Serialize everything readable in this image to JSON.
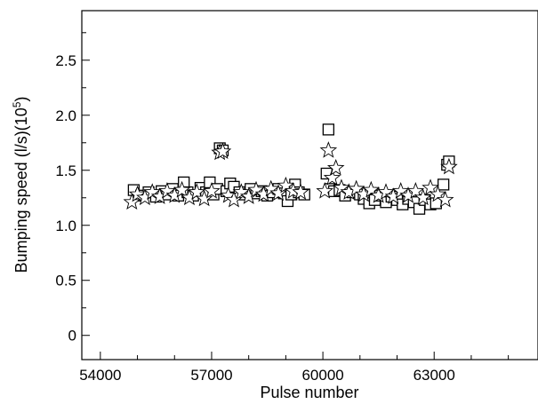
{
  "chart_data": {
    "type": "scatter",
    "xlabel": "Pulse number",
    "ylabel": "Bumping speed (l/s)(10",
    "ylabel_superscript": "5",
    "ylabel_suffix": ")",
    "xlim": [
      53500,
      65800
    ],
    "ylim": [
      -0.22,
      2.95
    ],
    "x_ticks": [
      54000,
      57000,
      60000,
      63000
    ],
    "x_tick_labels": [
      "54000",
      "57000",
      "60000",
      "63000"
    ],
    "x_minor_ticks": [
      55000,
      56000,
      58000,
      59000,
      61000,
      62000,
      64000,
      65000
    ],
    "y_ticks": [
      0,
      0.5,
      1.0,
      1.5,
      2.0,
      2.5
    ],
    "y_tick_labels": [
      "0",
      "0.5",
      "1.0",
      "1.5",
      "2.0",
      "2.5"
    ],
    "y_minor_ticks": [
      0.25,
      0.75,
      1.25,
      1.75,
      2.25,
      2.75
    ],
    "grid": false,
    "legend": "none",
    "series": [
      {
        "marker": "square",
        "points": [
          [
            54900,
            1.32
          ],
          [
            55100,
            1.27
          ],
          [
            55300,
            1.3
          ],
          [
            55500,
            1.26
          ],
          [
            55650,
            1.31
          ],
          [
            55800,
            1.28
          ],
          [
            55950,
            1.33
          ],
          [
            56100,
            1.27
          ],
          [
            56250,
            1.39
          ],
          [
            56350,
            1.3
          ],
          [
            56500,
            1.27
          ],
          [
            56700,
            1.34
          ],
          [
            56850,
            1.3
          ],
          [
            56950,
            1.39
          ],
          [
            57050,
            1.28
          ],
          [
            57150,
            1.33
          ],
          [
            57220,
            1.7
          ],
          [
            57300,
            1.68
          ],
          [
            57400,
            1.31
          ],
          [
            57500,
            1.38
          ],
          [
            57600,
            1.35
          ],
          [
            57750,
            1.3
          ],
          [
            57900,
            1.28
          ],
          [
            58050,
            1.33
          ],
          [
            58200,
            1.29
          ],
          [
            58350,
            1.31
          ],
          [
            58500,
            1.27
          ],
          [
            58650,
            1.3
          ],
          [
            58800,
            1.33
          ],
          [
            58950,
            1.29
          ],
          [
            59050,
            1.22
          ],
          [
            59150,
            1.28
          ],
          [
            59250,
            1.37
          ],
          [
            59350,
            1.3
          ],
          [
            59500,
            1.28
          ],
          [
            60100,
            1.47
          ],
          [
            60150,
            1.87
          ],
          [
            60200,
            1.33
          ],
          [
            60300,
            1.31
          ],
          [
            60450,
            1.32
          ],
          [
            60600,
            1.27
          ],
          [
            60800,
            1.3
          ],
          [
            61000,
            1.28
          ],
          [
            61100,
            1.24
          ],
          [
            61250,
            1.2
          ],
          [
            61400,
            1.23
          ],
          [
            61550,
            1.27
          ],
          [
            61700,
            1.21
          ],
          [
            61850,
            1.26
          ],
          [
            62000,
            1.23
          ],
          [
            62150,
            1.19
          ],
          [
            62300,
            1.24
          ],
          [
            62450,
            1.21
          ],
          [
            62600,
            1.15
          ],
          [
            62750,
            1.23
          ],
          [
            62900,
            1.19
          ],
          [
            63050,
            1.2
          ],
          [
            63250,
            1.37
          ],
          [
            63350,
            1.55
          ],
          [
            63400,
            1.58
          ]
        ]
      },
      {
        "marker": "star",
        "points": [
          [
            54850,
            1.21
          ],
          [
            55000,
            1.28
          ],
          [
            55200,
            1.25
          ],
          [
            55400,
            1.3
          ],
          [
            55600,
            1.26
          ],
          [
            55800,
            1.31
          ],
          [
            56000,
            1.27
          ],
          [
            56200,
            1.32
          ],
          [
            56400,
            1.25
          ],
          [
            56600,
            1.3
          ],
          [
            56800,
            1.24
          ],
          [
            57000,
            1.31
          ],
          [
            57220,
            1.66
          ],
          [
            57300,
            1.67
          ],
          [
            57450,
            1.27
          ],
          [
            57600,
            1.23
          ],
          [
            57800,
            1.3
          ],
          [
            58000,
            1.26
          ],
          [
            58200,
            1.32
          ],
          [
            58400,
            1.28
          ],
          [
            58600,
            1.33
          ],
          [
            58800,
            1.29
          ],
          [
            59000,
            1.36
          ],
          [
            59200,
            1.31
          ],
          [
            59400,
            1.3
          ],
          [
            60050,
            1.31
          ],
          [
            60150,
            1.68
          ],
          [
            60250,
            1.43
          ],
          [
            60350,
            1.52
          ],
          [
            60500,
            1.34
          ],
          [
            60700,
            1.3
          ],
          [
            60900,
            1.33
          ],
          [
            61100,
            1.28
          ],
          [
            61300,
            1.32
          ],
          [
            61500,
            1.27
          ],
          [
            61700,
            1.3
          ],
          [
            61900,
            1.26
          ],
          [
            62100,
            1.31
          ],
          [
            62300,
            1.27
          ],
          [
            62500,
            1.31
          ],
          [
            62700,
            1.25
          ],
          [
            62900,
            1.34
          ],
          [
            63100,
            1.28
          ],
          [
            63300,
            1.23
          ],
          [
            63400,
            1.53
          ]
        ]
      }
    ]
  }
}
